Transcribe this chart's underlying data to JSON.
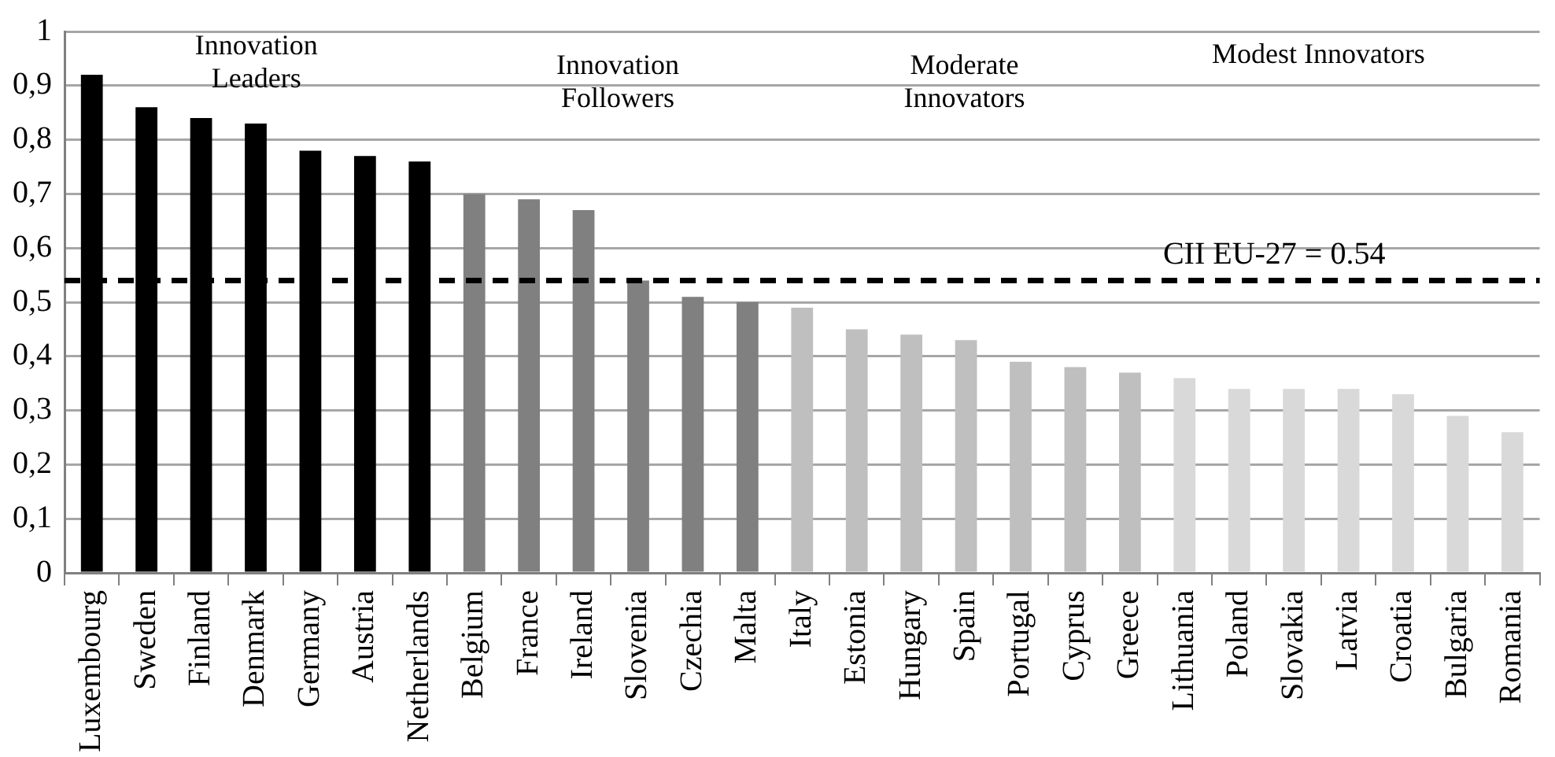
{
  "chart_data": {
    "type": "bar",
    "categories": [
      "Luxembourg",
      "Sweden",
      "Finland",
      "Denmark",
      "Germany",
      "Austria",
      "Netherlands",
      "Belgium",
      "France",
      "Ireland",
      "Slovenia",
      "Czechia",
      "Malta",
      "Italy",
      "Estonia",
      "Hungary",
      "Spain",
      "Portugal",
      "Cyprus",
      "Greece",
      "Lithuania",
      "Poland",
      "Slovakia",
      "Latvia",
      "Croatia",
      "Bulgaria",
      "Romania"
    ],
    "values": [
      0.92,
      0.86,
      0.84,
      0.83,
      0.78,
      0.77,
      0.76,
      0.7,
      0.69,
      0.67,
      0.54,
      0.51,
      0.5,
      0.49,
      0.45,
      0.44,
      0.43,
      0.39,
      0.38,
      0.37,
      0.36,
      0.34,
      0.34,
      0.34,
      0.33,
      0.29,
      0.26
    ],
    "colors": [
      "#000000",
      "#000000",
      "#000000",
      "#000000",
      "#000000",
      "#000000",
      "#000000",
      "#808080",
      "#808080",
      "#808080",
      "#808080",
      "#808080",
      "#808080",
      "#bfbfbf",
      "#bfbfbf",
      "#bfbfbf",
      "#bfbfbf",
      "#bfbfbf",
      "#bfbfbf",
      "#bfbfbf",
      "#d9d9d9",
      "#d9d9d9",
      "#d9d9d9",
      "#d9d9d9",
      "#d9d9d9",
      "#d9d9d9",
      "#d9d9d9"
    ],
    "ylim": [
      0,
      1
    ],
    "yticks": [
      0,
      {
        "value": 0.1,
        "label": "0,1"
      },
      {
        "value": 0.2,
        "label": "0,2"
      },
      {
        "value": 0.3,
        "label": "0,3"
      },
      {
        "value": 0.4,
        "label": "0,4"
      },
      {
        "value": 0.5,
        "label": "0,5"
      },
      {
        "value": 0.6,
        "label": "0,6"
      },
      {
        "value": 0.7,
        "label": "0,7"
      },
      {
        "value": 0.8,
        "label": "0,8"
      },
      {
        "value": 0.9,
        "label": "0,9"
      },
      1
    ],
    "grid": "y",
    "legend": false,
    "ref_lines": [
      {
        "axis": "y",
        "value": 0.54,
        "label": "CII EU-27 = 0.54",
        "color": "#000000",
        "line_style": "dashed"
      }
    ],
    "annotations": [
      "Innovation\nLeaders",
      "Innovation\nFollowers",
      "Moderate\nInnovators",
      "Modest Innovators"
    ]
  }
}
